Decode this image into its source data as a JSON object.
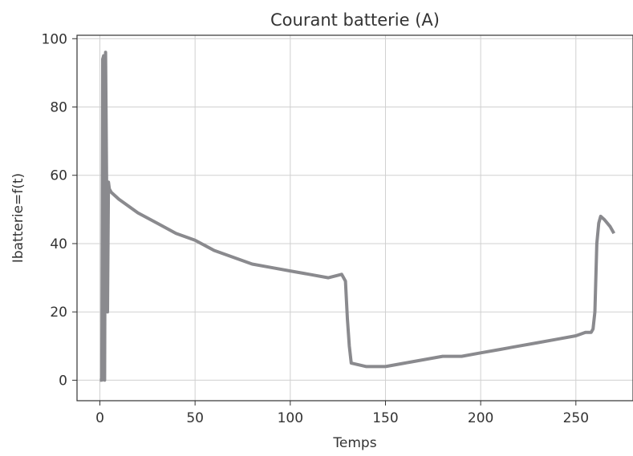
{
  "chart_data": {
    "type": "line",
    "title": "Courant batterie (A)",
    "xlabel": "Temps",
    "ylabel": "Ibatterie=f(t)",
    "xlim": [
      -12,
      280
    ],
    "ylim": [
      -6,
      101
    ],
    "xticks": [
      0,
      50,
      100,
      150,
      200,
      250
    ],
    "yticks": [
      0,
      20,
      40,
      60,
      80,
      100
    ],
    "grid": true,
    "line_color": "#8a8a8e",
    "series": [
      {
        "x": [
          0,
          1,
          1.5,
          2,
          2.5,
          3,
          3.5,
          4,
          4.5,
          5,
          6,
          10,
          20,
          30,
          40,
          50,
          60,
          70,
          80,
          90,
          100,
          110,
          120,
          127,
          128,
          129,
          130,
          131,
          132,
          140,
          150,
          160,
          170,
          180,
          190,
          200,
          210,
          220,
          230,
          240,
          250,
          255,
          258,
          259,
          260,
          261,
          262,
          263,
          265,
          268,
          270
        ],
        "y": [
          0,
          0,
          94,
          95,
          0,
          96,
          60,
          20,
          58,
          56,
          55,
          53,
          49,
          46,
          43,
          41,
          38,
          36,
          34,
          33,
          32,
          31,
          30,
          31,
          30,
          29,
          18,
          10,
          5,
          4,
          4,
          5,
          6,
          7,
          7,
          8,
          9,
          10,
          11,
          12,
          13,
          14,
          14,
          15,
          20,
          40,
          46,
          48,
          47,
          45,
          43
        ]
      }
    ]
  }
}
